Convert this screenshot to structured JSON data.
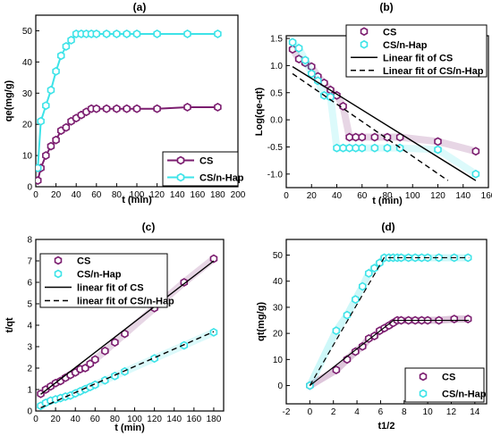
{
  "colors": {
    "cs": "#7b1d6f",
    "hap": "#3de3e8",
    "fit": "#000000"
  },
  "chart_data": [
    {
      "panel": "(a)",
      "type": "line",
      "xlabel": "t (min)",
      "ylabel": "qe(mg/g)",
      "xlim": [
        0,
        200
      ],
      "ylim": [
        0,
        55
      ],
      "xticks": [
        "0",
        "20",
        "40",
        "60",
        "80",
        "100",
        "120",
        "140",
        "160",
        "180",
        "200"
      ],
      "yticks": [
        "0",
        "10",
        "20",
        "30",
        "40",
        "50"
      ],
      "legend_position": "bottom-right",
      "series": [
        {
          "name": "CS",
          "marker": "hexagon",
          "color": "#7b1d6f",
          "x": [
            2,
            5,
            10,
            15,
            20,
            25,
            30,
            35,
            40,
            45,
            50,
            55,
            60,
            70,
            80,
            90,
            100,
            120,
            150,
            180
          ],
          "y": [
            2,
            6,
            10,
            13,
            15,
            18,
            19,
            21,
            22,
            23,
            24,
            25,
            25,
            25,
            25,
            25,
            25,
            25,
            25.5,
            25.5
          ]
        },
        {
          "name": "CS/n-Hap",
          "marker": "hexagon",
          "color": "#3de3e8",
          "x": [
            2,
            5,
            10,
            15,
            20,
            25,
            30,
            35,
            40,
            45,
            50,
            55,
            60,
            70,
            80,
            90,
            100,
            120,
            150,
            180
          ],
          "y": [
            6,
            21,
            26,
            31,
            37,
            42,
            45,
            47,
            49,
            49,
            49,
            49,
            49,
            49,
            49,
            49,
            49,
            49,
            49,
            49
          ]
        }
      ]
    },
    {
      "panel": "(b)",
      "type": "scatter",
      "xlabel": "t (min)",
      "ylabel": "Log(qe-qt)",
      "xlim": [
        0,
        160
      ],
      "ylim": [
        -1.25,
        1.55
      ],
      "xticks": [
        "0",
        "20",
        "40",
        "60",
        "80",
        "100",
        "120",
        "140",
        "160"
      ],
      "yticks": [
        "-1.0",
        "-0.5",
        "0.0",
        "0.5",
        "1.0",
        "1.5"
      ],
      "legend_position": "top-right",
      "series": [
        {
          "name": "CS",
          "marker": "hexagon",
          "color": "#7b1d6f",
          "x": [
            5,
            10,
            15,
            20,
            25,
            30,
            35,
            40,
            45,
            50,
            55,
            60,
            70,
            80,
            90,
            120,
            150
          ],
          "y": [
            1.3,
            1.12,
            1.05,
            0.98,
            0.8,
            0.68,
            0.55,
            0.45,
            0.25,
            -0.32,
            -0.32,
            -0.32,
            -0.32,
            -0.32,
            -0.32,
            -0.4,
            -0.58
          ]
        },
        {
          "name": "CS/n-Hap",
          "marker": "hexagon",
          "color": "#3de3e8",
          "x": [
            5,
            10,
            15,
            20,
            25,
            30,
            35,
            40,
            45,
            50,
            55,
            60,
            70,
            80,
            90,
            120,
            150
          ],
          "y": [
            1.43,
            1.32,
            1.1,
            0.85,
            0.72,
            0.45,
            0.42,
            -0.52,
            -0.52,
            -0.52,
            -0.52,
            -0.52,
            -0.52,
            -0.52,
            -0.52,
            -0.55,
            -1.0
          ]
        },
        {
          "name": "Linear fit of CS",
          "style": "solid",
          "color": "#000000",
          "x": [
            5,
            150
          ],
          "y": [
            0.98,
            -1.12
          ]
        },
        {
          "name": "Linear fit of CS/n-Hap",
          "style": "dashed",
          "color": "#000000",
          "x": [
            5,
            128
          ],
          "y": [
            0.85,
            -1.12
          ]
        }
      ]
    },
    {
      "panel": "(c)",
      "type": "scatter",
      "xlabel": "t (min)",
      "ylabel": "t/qt",
      "xlim": [
        0,
        190
      ],
      "ylim": [
        0,
        8
      ],
      "xticks": [
        "0",
        "20",
        "40",
        "60",
        "80",
        "100",
        "120",
        "140",
        "160",
        "180"
      ],
      "yticks": [
        "0",
        "1",
        "2",
        "3",
        "4",
        "5",
        "6",
        "7",
        "8"
      ],
      "legend_position": "top-left",
      "series": [
        {
          "name": "CS",
          "marker": "hexagon",
          "color": "#7b1d6f",
          "x": [
            5,
            10,
            15,
            20,
            25,
            30,
            35,
            40,
            45,
            50,
            55,
            60,
            70,
            80,
            90,
            120,
            150,
            180
          ],
          "y": [
            0.8,
            1.0,
            1.15,
            1.3,
            1.4,
            1.55,
            1.68,
            1.8,
            1.95,
            2.0,
            2.2,
            2.4,
            2.8,
            3.2,
            3.6,
            4.8,
            6.0,
            7.1
          ]
        },
        {
          "name": "CS/n-Hap",
          "marker": "hexagon",
          "color": "#3de3e8",
          "x": [
            5,
            10,
            15,
            20,
            25,
            30,
            35,
            40,
            45,
            50,
            55,
            60,
            70,
            80,
            90,
            120,
            150,
            180
          ],
          "y": [
            0.24,
            0.38,
            0.48,
            0.54,
            0.6,
            0.67,
            0.72,
            0.82,
            0.92,
            1.02,
            1.12,
            1.22,
            1.43,
            1.63,
            1.84,
            2.45,
            3.06,
            3.67
          ]
        },
        {
          "name": "linear fit of CS",
          "style": "solid",
          "color": "#000000",
          "x": [
            5,
            180
          ],
          "y": [
            0.78,
            7.0
          ]
        },
        {
          "name": "linear fit of CS/n-Hap",
          "style": "dashed",
          "color": "#000000",
          "x": [
            5,
            180
          ],
          "y": [
            0.15,
            3.7
          ]
        }
      ]
    },
    {
      "panel": "(d)",
      "type": "scatter",
      "xlabel": "t1/2",
      "ylabel": "qt(mg/g)",
      "xlim": [
        -2,
        15
      ],
      "ylim": [
        -7,
        56
      ],
      "xticks": [
        "-2",
        "0",
        "2",
        "4",
        "6",
        "8",
        "10",
        "12",
        "14"
      ],
      "yticks": [
        "0",
        "10",
        "20",
        "30",
        "40",
        "50"
      ],
      "legend_position": "bottom-right",
      "series": [
        {
          "name": "CS",
          "marker": "hexagon",
          "color": "#7b1d6f",
          "x": [
            0,
            2.24,
            3.16,
            3.87,
            4.47,
            5.0,
            5.48,
            5.92,
            6.32,
            6.71,
            7.07,
            7.42,
            7.75,
            8.37,
            8.94,
            9.49,
            10.0,
            10.95,
            12.25,
            13.42
          ],
          "y": [
            0,
            6,
            10,
            13,
            15,
            18,
            19,
            21,
            22,
            23,
            24,
            25,
            25,
            25,
            25,
            25,
            25,
            25,
            25.5,
            25.5
          ]
        },
        {
          "name": "CS/n-Hap",
          "marker": "hexagon",
          "color": "#3de3e8",
          "x": [
            0,
            2.24,
            3.16,
            3.87,
            4.47,
            5.0,
            5.48,
            5.92,
            6.32,
            6.71,
            7.07,
            7.42,
            7.75,
            8.37,
            8.94,
            9.49,
            10.0,
            10.95,
            12.25,
            13.42
          ],
          "y": [
            0,
            21,
            27,
            33,
            38,
            43,
            45,
            47,
            49,
            49,
            49,
            49,
            49,
            49,
            49,
            49,
            49,
            49,
            49,
            49
          ]
        }
      ]
    }
  ]
}
